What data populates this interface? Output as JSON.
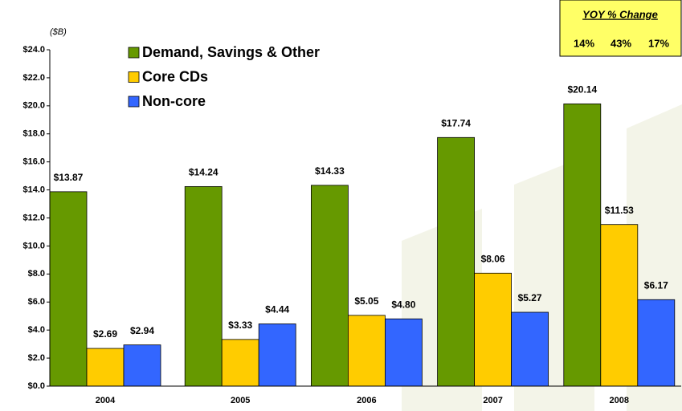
{
  "chart_data": {
    "type": "bar",
    "unit_label": "($B)",
    "categories": [
      "2004",
      "2005",
      "2006",
      "2007",
      "2008"
    ],
    "series": [
      {
        "name": "Demand, Savings & Other",
        "color": "#669900",
        "values": [
          13.87,
          14.24,
          14.33,
          17.74,
          20.14
        ],
        "value_labels": [
          "$13.87",
          "$14.24",
          "$14.33",
          "$17.74",
          "$20.14"
        ]
      },
      {
        "name": "Core CDs",
        "color": "#ffcc00",
        "values": [
          2.69,
          3.33,
          5.05,
          8.06,
          11.53
        ],
        "value_labels": [
          "$2.69",
          "$3.33",
          "$5.05",
          "$8.06",
          "$11.53"
        ]
      },
      {
        "name": "Non-core",
        "color": "#3366ff",
        "values": [
          2.94,
          4.44,
          4.8,
          5.27,
          6.17
        ],
        "value_labels": [
          "$2.94",
          "$4.44",
          "$4.80",
          "$5.27",
          "$6.17"
        ]
      }
    ],
    "ylim": [
      0,
      24
    ],
    "yticks": [
      {
        "value": 0,
        "label": "$0.0"
      },
      {
        "value": 2,
        "label": "$2.0"
      },
      {
        "value": 4,
        "label": "$4.0"
      },
      {
        "value": 6,
        "label": "$6.0"
      },
      {
        "value": 8,
        "label": "$8.0"
      },
      {
        "value": 10,
        "label": "$10.0"
      },
      {
        "value": 12,
        "label": "$12.0"
      },
      {
        "value": 14,
        "label": "$14.0"
      },
      {
        "value": 16,
        "label": "$16.0"
      },
      {
        "value": 18,
        "label": "$18.0"
      },
      {
        "value": 20,
        "label": "$20.0"
      },
      {
        "value": 22,
        "label": "$22.0"
      },
      {
        "value": 24,
        "label": "$24.0"
      }
    ],
    "legend": "top-left",
    "yoy_box": {
      "title": "YOY % Change",
      "labels": [
        "14%",
        "43%",
        "17%"
      ]
    }
  }
}
